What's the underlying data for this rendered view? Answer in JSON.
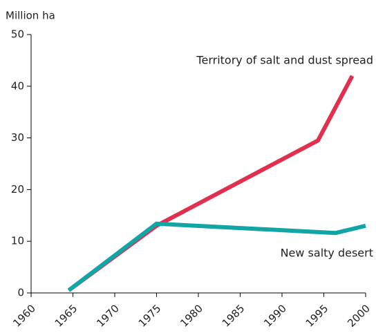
{
  "chart_data": {
    "type": "line",
    "y_label": "Million ha",
    "xlim": [
      1960,
      2000
    ],
    "xticks": [
      1960,
      1965,
      1970,
      1975,
      1980,
      1985,
      1990,
      1995,
      2000
    ],
    "ylim": [
      0,
      50
    ],
    "yticks": [
      0,
      10,
      20,
      30,
      40,
      50
    ],
    "series": [
      {
        "name": "Territory of salt and dust spread",
        "color": "#e0304e",
        "x": [
          1964.5,
          1975,
          1994.3,
          1998.4
        ],
        "values": [
          0.5,
          13,
          29.5,
          42
        ]
      },
      {
        "name": "New salty desert",
        "color": "#12a5a5",
        "x": [
          1964.5,
          1975,
          1996.4,
          2000
        ],
        "values": [
          0.5,
          13.4,
          11.6,
          13
        ]
      }
    ]
  }
}
